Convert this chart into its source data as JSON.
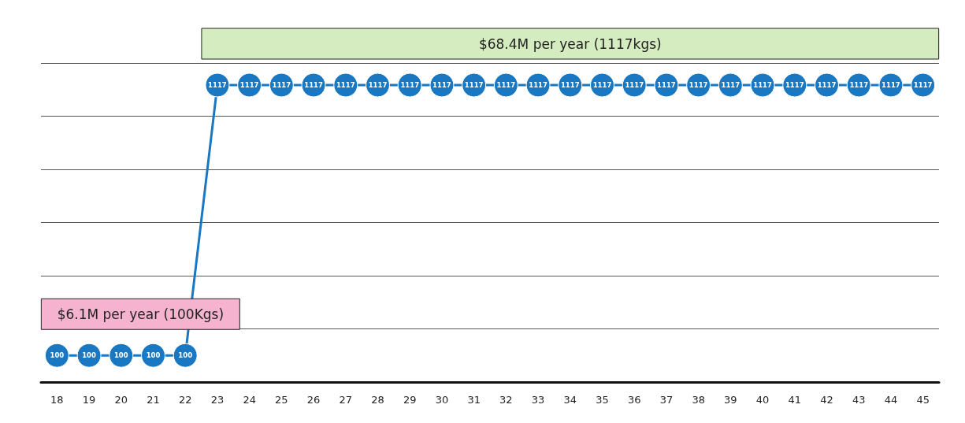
{
  "chart_data": {
    "type": "line",
    "categories": [
      "18",
      "19",
      "20",
      "21",
      "22",
      "23",
      "24",
      "25",
      "26",
      "27",
      "28",
      "29",
      "30",
      "31",
      "32",
      "33",
      "34",
      "35",
      "36",
      "37",
      "38",
      "39",
      "40",
      "41",
      "42",
      "43",
      "44",
      "45"
    ],
    "series": [
      {
        "color": "#1a78c2",
        "values": [
          100,
          100,
          100,
          100,
          100,
          1117,
          1117,
          1117,
          1117,
          1117,
          1117,
          1117,
          1117,
          1117,
          1117,
          1117,
          1117,
          1117,
          1117,
          1117,
          1117,
          1117,
          1117,
          1117,
          1117,
          1117,
          1117,
          1117
        ]
      }
    ],
    "ylim": [
      0,
      1200
    ],
    "yticks": [
      {
        "value": 0,
        "label": null
      },
      {
        "value": 200,
        "label": null
      },
      {
        "value": 400,
        "label": null
      },
      {
        "value": 600,
        "label": null
      },
      {
        "value": 800,
        "label": null
      },
      {
        "value": 1000,
        "label": null
      },
      {
        "value": 1200,
        "label": null
      }
    ],
    "tick_labels": "x",
    "grid": "y",
    "marker": "circle",
    "line_style": "solid",
    "data_labels": true,
    "annotations": [
      {
        "text": "$68.4M per year (1117kgs)",
        "y": 1117
      },
      {
        "text": "$6.1M per year (100Kgs)",
        "y": 100
      }
    ]
  }
}
